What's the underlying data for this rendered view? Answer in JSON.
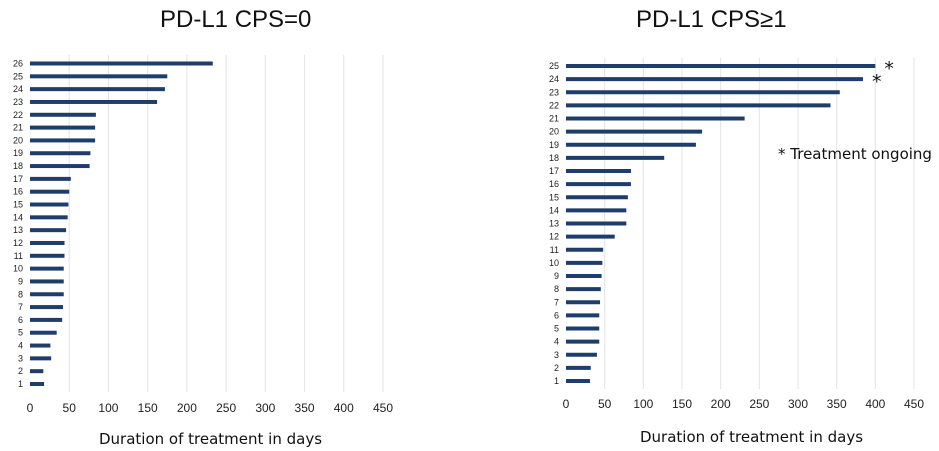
{
  "chart_data": [
    {
      "type": "bar",
      "orientation": "horizontal",
      "title": "PD-L1 CPS=0",
      "xlabel": "Duration of treatment in days",
      "ylabel": "",
      "xlim": [
        0,
        450
      ],
      "xticks": [
        0,
        50,
        100,
        150,
        200,
        250,
        300,
        350,
        400,
        450
      ],
      "grid": "vertical",
      "color": "#1f3d6b",
      "categories": [
        "1",
        "2",
        "3",
        "4",
        "5",
        "6",
        "7",
        "8",
        "9",
        "10",
        "11",
        "12",
        "13",
        "14",
        "15",
        "16",
        "17",
        "18",
        "19",
        "20",
        "21",
        "22",
        "23",
        "24",
        "25",
        "26"
      ],
      "values": [
        18,
        17,
        27,
        26,
        34,
        41,
        42,
        43,
        43,
        43,
        44,
        44,
        46,
        48,
        49,
        50,
        52,
        76,
        77,
        83,
        83,
        84,
        162,
        172,
        175,
        233
      ],
      "markers": []
    },
    {
      "type": "bar",
      "orientation": "horizontal",
      "title": "PD-L1 CPS≥1",
      "xlabel": "Duration of treatment in days",
      "ylabel": "",
      "xlim": [
        0,
        450
      ],
      "xticks": [
        0,
        50,
        100,
        150,
        200,
        250,
        300,
        350,
        400,
        450
      ],
      "grid": "vertical",
      "color": "#1f3d6b",
      "annotation": "* Treatment ongoing",
      "categories": [
        "1",
        "2",
        "3",
        "4",
        "5",
        "6",
        "7",
        "8",
        "9",
        "10",
        "11",
        "12",
        "13",
        "14",
        "15",
        "16",
        "17",
        "18",
        "19",
        "20",
        "21",
        "22",
        "23",
        "24",
        "25"
      ],
      "values": [
        31,
        32,
        40,
        43,
        43,
        43,
        44,
        45,
        46,
        47,
        48,
        63,
        78,
        78,
        80,
        84,
        84,
        127,
        168,
        176,
        231,
        342,
        354,
        384,
        400
      ],
      "markers": [
        {
          "category": "24",
          "symbol": "*"
        },
        {
          "category": "25",
          "symbol": "*"
        }
      ]
    }
  ]
}
